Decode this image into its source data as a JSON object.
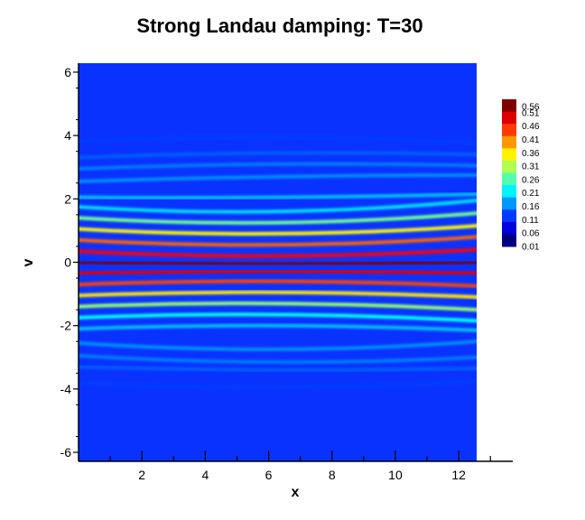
{
  "chart_data": {
    "type": "heatmap",
    "title": "Strong Landau damping: T=30",
    "xlabel": "x",
    "ylabel": "v",
    "xlim": [
      0,
      12.566
    ],
    "ylim": [
      -6.283,
      6.283
    ],
    "x_ticks": [
      2,
      4,
      6,
      8,
      10,
      12
    ],
    "y_ticks": [
      -6,
      -4,
      -2,
      0,
      2,
      4,
      6
    ],
    "colormap": "jet",
    "colorbar": {
      "levels": [
        0.01,
        0.06,
        0.11,
        0.16,
        0.21,
        0.26,
        0.31,
        0.36,
        0.41,
        0.46,
        0.51,
        0.56
      ],
      "labels": [
        "0.01",
        "0.06",
        "0.11",
        "0.16",
        "0.21",
        "0.26",
        "0.31",
        "0.36",
        "0.41",
        "0.46",
        "0.51",
        "0.56"
      ],
      "placement": "right"
    },
    "filaments": [
      {
        "v_left": 0.0,
        "v_mid": -0.05,
        "v_right": 0.0,
        "value": 0.56
      },
      {
        "v_left": 0.35,
        "v_mid": 0.2,
        "v_right": 0.4,
        "value": 0.48
      },
      {
        "v_left": -0.35,
        "v_mid": -0.28,
        "v_right": -0.35,
        "value": 0.5
      },
      {
        "v_left": 0.7,
        "v_mid": 0.55,
        "v_right": 0.8,
        "value": 0.42
      },
      {
        "v_left": -0.7,
        "v_mid": -0.6,
        "v_right": -0.75,
        "value": 0.44
      },
      {
        "v_left": 1.05,
        "v_mid": 0.9,
        "v_right": 1.15,
        "value": 0.33
      },
      {
        "v_left": -1.05,
        "v_mid": -0.95,
        "v_right": -1.1,
        "value": 0.34
      },
      {
        "v_left": 1.4,
        "v_mid": 1.25,
        "v_right": 1.55,
        "value": 0.24
      },
      {
        "v_left": -1.4,
        "v_mid": -1.3,
        "v_right": -1.5,
        "value": 0.26
      },
      {
        "v_left": 1.75,
        "v_mid": 1.6,
        "v_right": 1.95,
        "value": 0.15
      },
      {
        "v_left": -1.75,
        "v_mid": -1.65,
        "v_right": -1.85,
        "value": 0.17
      },
      {
        "v_left": 2.05,
        "v_mid": 2.05,
        "v_right": 2.15,
        "value": 0.13
      },
      {
        "v_left": -2.1,
        "v_mid": -2.0,
        "v_right": -2.15,
        "value": 0.13
      },
      {
        "v_left": 2.55,
        "v_mid": 2.7,
        "v_right": 2.75,
        "value": 0.1
      },
      {
        "v_left": -2.55,
        "v_mid": -2.75,
        "v_right": -2.5,
        "value": 0.1
      },
      {
        "v_left": 2.95,
        "v_mid": 3.1,
        "v_right": 3.05,
        "value": 0.09
      },
      {
        "v_left": -2.95,
        "v_mid": -3.15,
        "v_right": -3.0,
        "value": 0.09
      },
      {
        "v_left": 3.3,
        "v_mid": 3.45,
        "v_right": 3.4,
        "value": 0.07
      },
      {
        "v_left": -3.3,
        "v_mid": -3.4,
        "v_right": -3.35,
        "value": 0.07
      },
      {
        "v_left": 3.8,
        "v_mid": 3.95,
        "v_right": 3.75,
        "value": 0.05
      },
      {
        "v_left": -3.8,
        "v_mid": -3.95,
        "v_right": -3.75,
        "value": 0.05
      }
    ]
  }
}
